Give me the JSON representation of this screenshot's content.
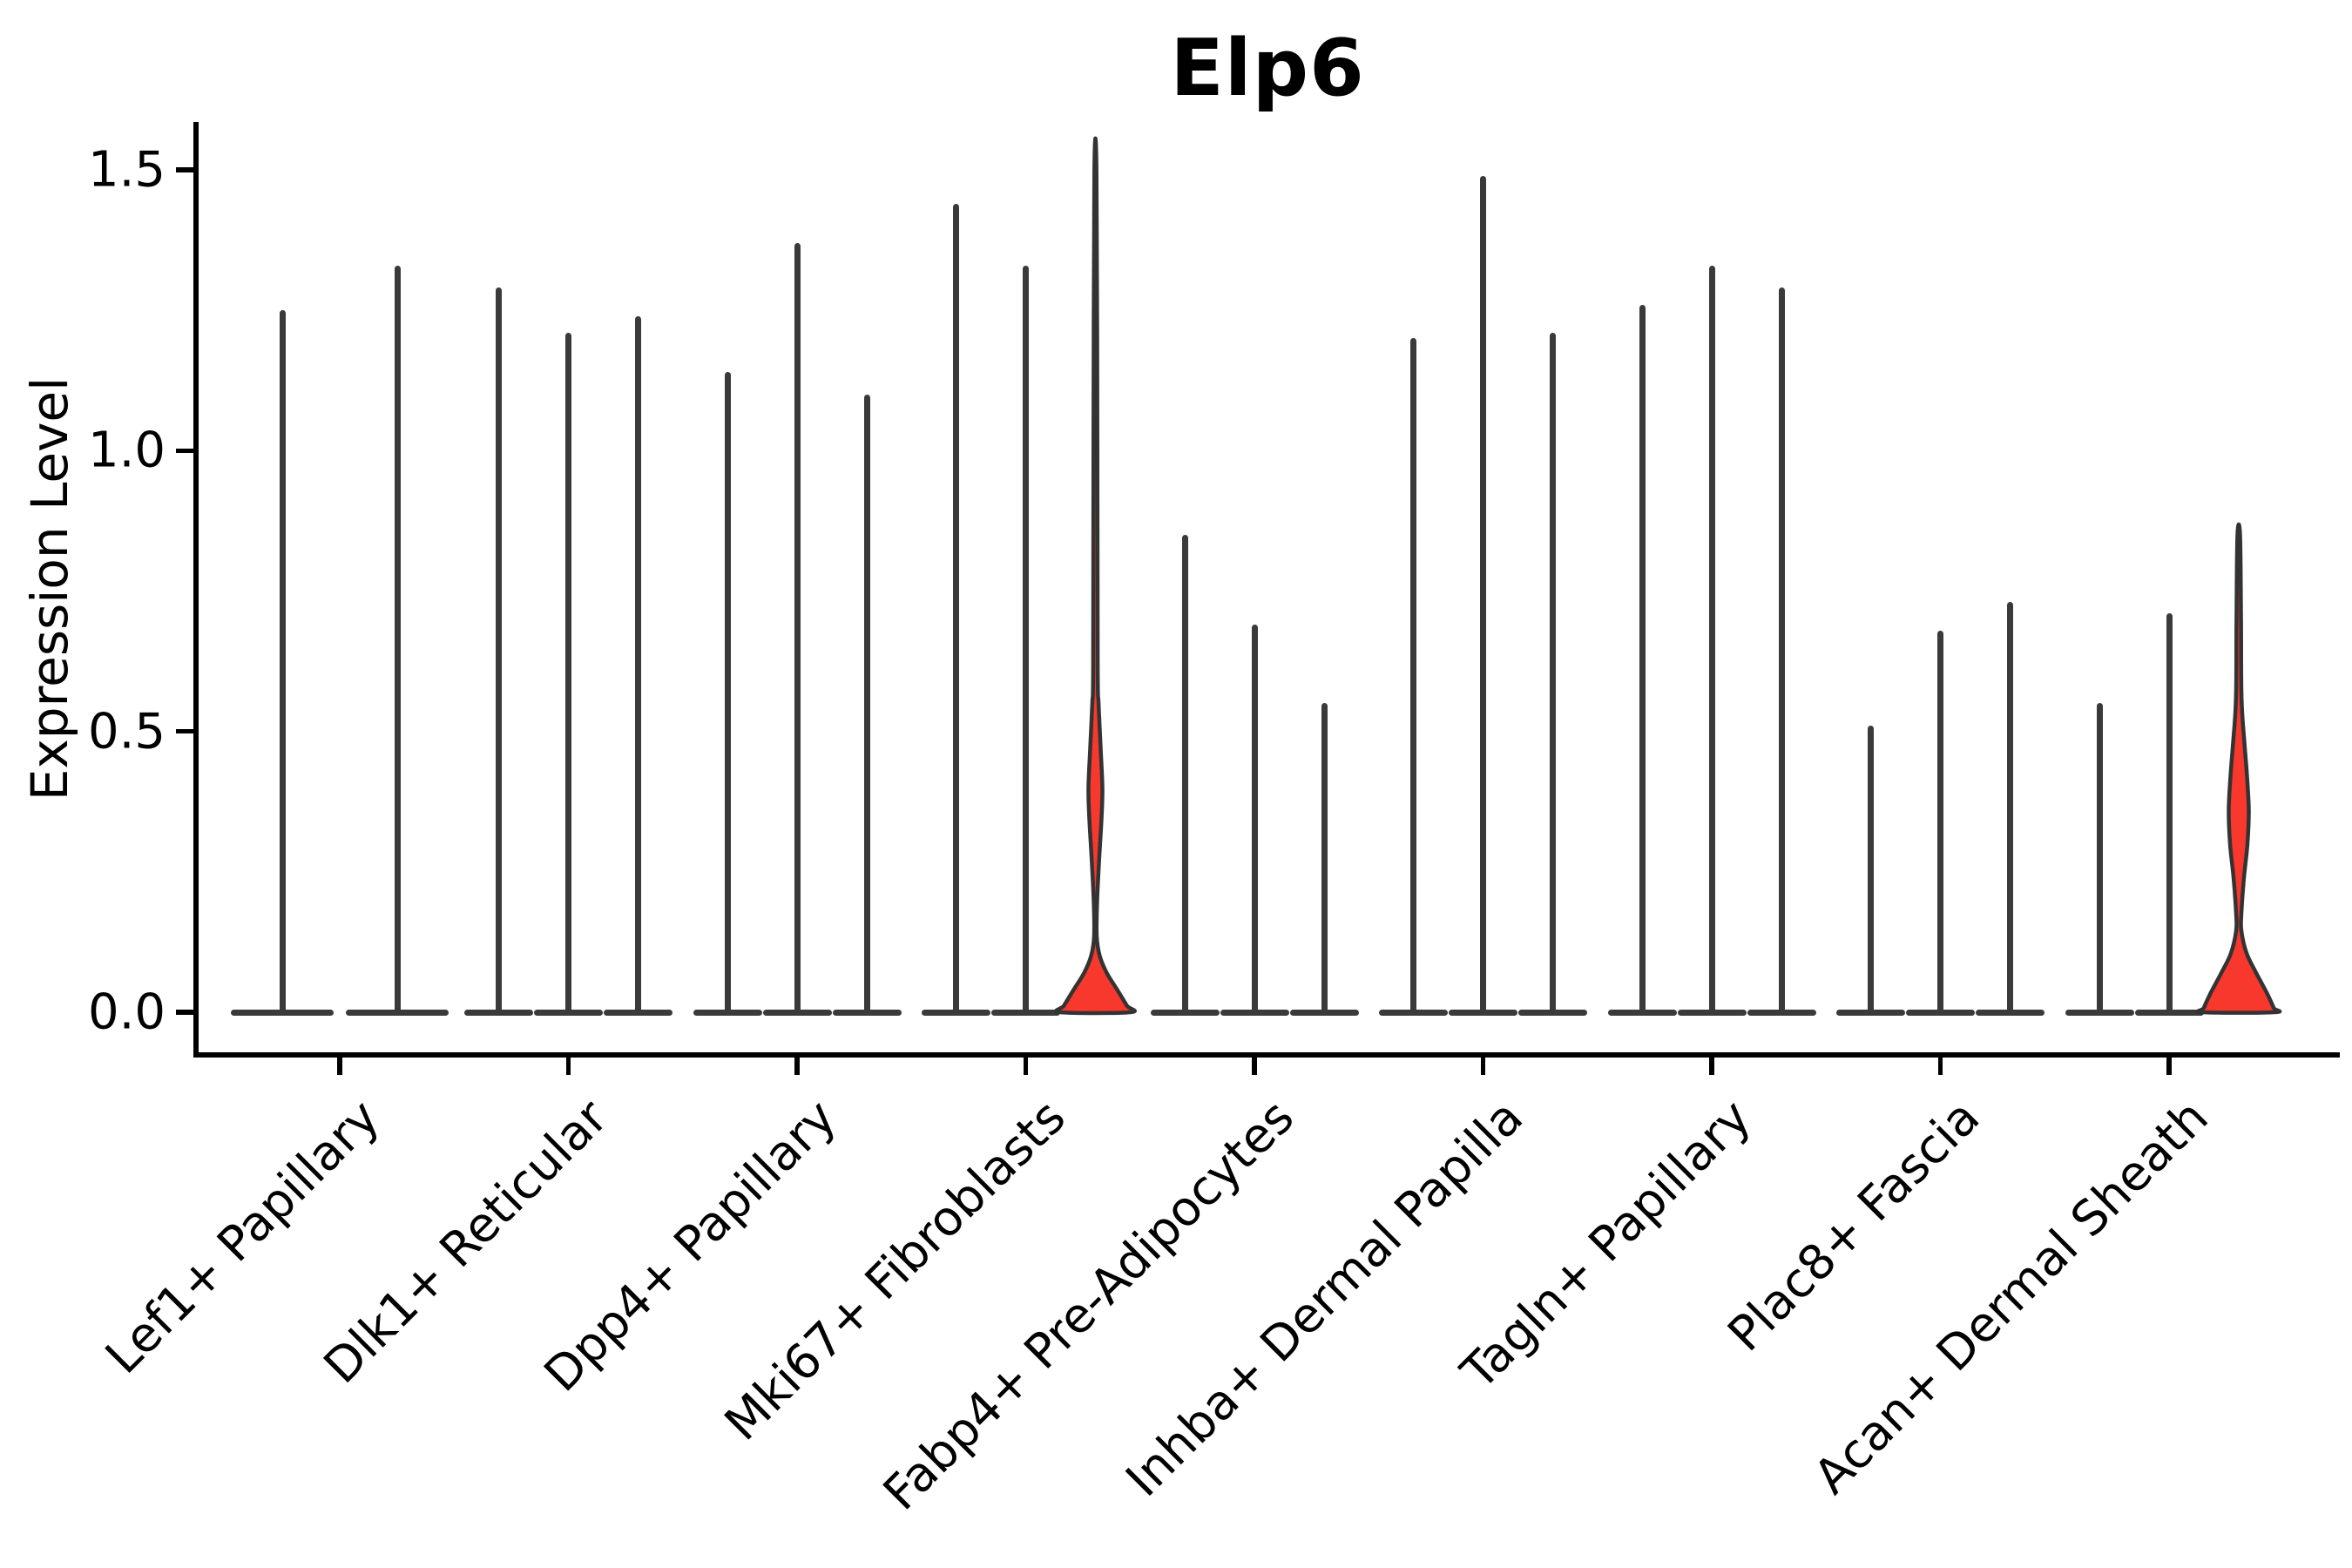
{
  "title": "Elp6",
  "chart_data": {
    "type": "violin",
    "title": "Elp6",
    "xlabel": "",
    "ylabel": "Expression Level",
    "ylim": [
      0,
      1.58
    ],
    "yticks": [
      0.0,
      0.5,
      1.0,
      1.5
    ],
    "ytick_labels": [
      "0.0",
      "0.5",
      "1.0",
      "1.5"
    ],
    "grid": "off",
    "legend": "none",
    "colors": {
      "violin_line": "#3a3a3a",
      "violin_outline": "#333333",
      "highlight_fill": "#f8382d",
      "axis": "#000000",
      "text": "#000000"
    },
    "categories": [
      "Lef1+ Papillary",
      "Dlk1+ Reticular",
      "Dpp4+ Papillary",
      "Mki67+ Fibroblasts",
      "Fabp4+ Pre-Adipocytes",
      "Inhba+ Dermal Papilla",
      "Tagln+ Papillary",
      "Plac8+ Fascia",
      "Acan+ Dermal Sheath"
    ],
    "groups": [
      {
        "label": "Lef1+ Papillary",
        "violins": [
          {
            "dx": -66,
            "max": 1.25,
            "base_w": 118
          },
          {
            "dx": 66,
            "max": 1.33,
            "base_w": 118
          }
        ]
      },
      {
        "label": "Dlk1+ Reticular",
        "violins": [
          {
            "dx": -80,
            "max": 1.29,
            "base_w": 79
          },
          {
            "dx": 0,
            "max": 1.21,
            "base_w": 79
          },
          {
            "dx": 80,
            "max": 1.24,
            "base_w": 79
          }
        ]
      },
      {
        "label": "Dpp4+ Papillary",
        "violins": [
          {
            "dx": -80,
            "max": 1.14,
            "base_w": 79
          },
          {
            "dx": 0,
            "max": 1.37,
            "base_w": 79
          },
          {
            "dx": 80,
            "max": 1.1,
            "base_w": 79
          }
        ]
      },
      {
        "label": "Mki67+ Fibroblasts",
        "violins": [
          {
            "dx": -80,
            "max": 1.44,
            "base_w": 79
          },
          {
            "dx": 0,
            "max": 1.33,
            "base_w": 79
          },
          {
            "dx": 80,
            "max": 1.5,
            "base_w": 80,
            "highlight": true,
            "profile": [
              [
                1.5,
                1.2
              ],
              [
                1.05,
                2.2
              ],
              [
                0.62,
                2.6
              ],
              [
                0.55,
                3.6
              ],
              [
                0.47,
                6.0
              ],
              [
                0.4,
                8.0
              ],
              [
                0.345,
                7.0
              ],
              [
                0.27,
                4.2
              ],
              [
                0.2,
                2.0
              ],
              [
                0.135,
                1.5
              ],
              [
                0.1,
                5.0
              ],
              [
                0.07,
                13.0
              ],
              [
                0.04,
                25.0
              ],
              [
                0.012,
                36.0
              ],
              [
                0.0,
                40.0
              ]
            ]
          }
        ]
      },
      {
        "label": "Fabp4+ Pre-Adipocytes",
        "violins": [
          {
            "dx": -80,
            "max": 0.85,
            "base_w": 79
          },
          {
            "dx": 0,
            "max": 0.69,
            "base_w": 79
          },
          {
            "dx": 80,
            "max": 0.55,
            "base_w": 79
          }
        ]
      },
      {
        "label": "Inhba+ Dermal Papilla",
        "violins": [
          {
            "dx": -80,
            "max": 1.2,
            "base_w": 79
          },
          {
            "dx": 0,
            "max": 1.49,
            "base_w": 79
          },
          {
            "dx": 80,
            "max": 1.21,
            "base_w": 79
          }
        ]
      },
      {
        "label": "Tagln+ Papillary",
        "violins": [
          {
            "dx": -80,
            "max": 1.26,
            "base_w": 79
          },
          {
            "dx": 0,
            "max": 1.33,
            "base_w": 79
          },
          {
            "dx": 80,
            "max": 1.29,
            "base_w": 79
          }
        ]
      },
      {
        "label": "Plac8+ Fascia",
        "violins": [
          {
            "dx": -80,
            "max": 0.51,
            "base_w": 79
          },
          {
            "dx": 0,
            "max": 0.68,
            "base_w": 79
          },
          {
            "dx": 80,
            "max": 0.73,
            "base_w": 79
          }
        ]
      },
      {
        "label": "Acan+ Dermal Sheath",
        "violins": [
          {
            "dx": -80,
            "max": 0.55,
            "base_w": 79
          },
          {
            "dx": 0,
            "max": 0.71,
            "base_w": 79
          },
          {
            "dx": 80,
            "max": 0.85,
            "base_w": 84,
            "highlight": true,
            "profile": [
              [
                0.85,
                1.5
              ],
              [
                0.7,
                2.6
              ],
              [
                0.56,
                3.2
              ],
              [
                0.48,
                6.5
              ],
              [
                0.42,
                9.5
              ],
              [
                0.36,
                11.5
              ],
              [
                0.3,
                10.0
              ],
              [
                0.24,
                6.0
              ],
              [
                0.175,
                3.0
              ],
              [
                0.145,
                3.0
              ],
              [
                0.105,
                9.0
              ],
              [
                0.07,
                20.0
              ],
              [
                0.035,
                32.0
              ],
              [
                0.008,
                40.0
              ],
              [
                0.0,
                41.0
              ]
            ]
          }
        ]
      }
    ]
  }
}
